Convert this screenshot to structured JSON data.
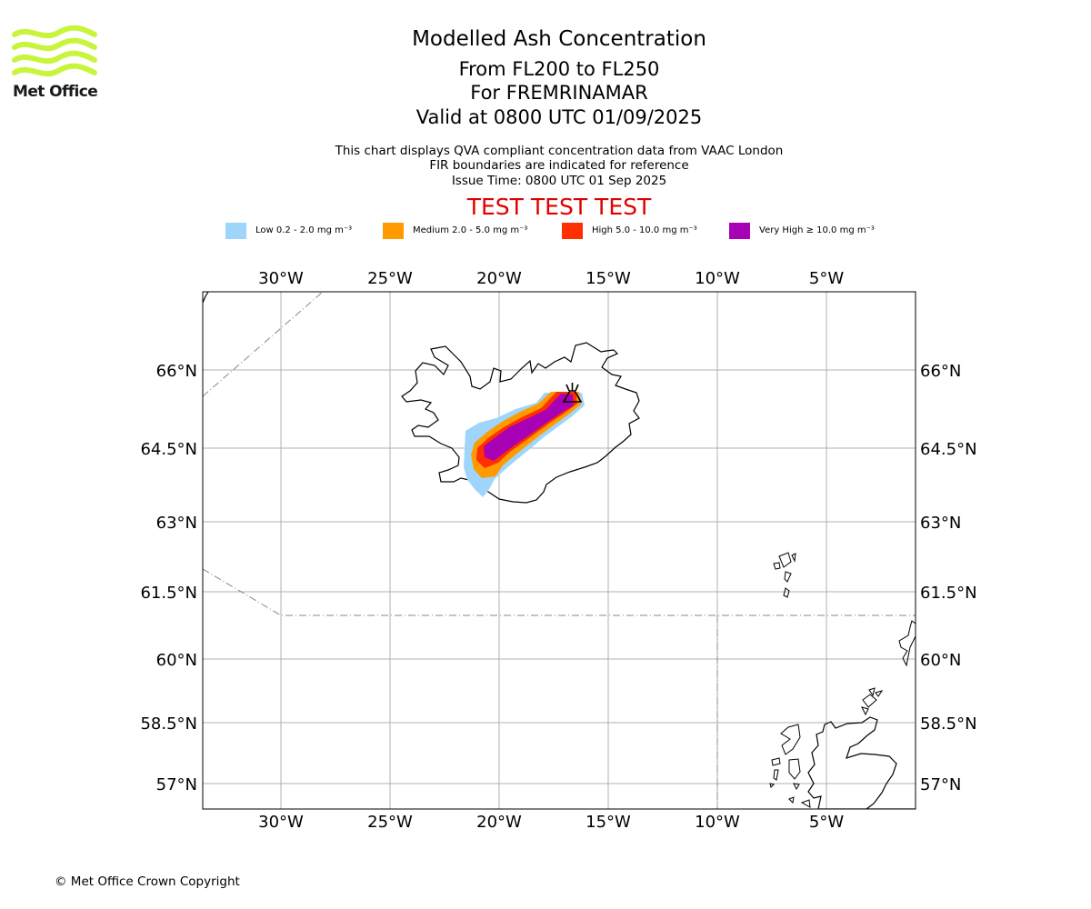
{
  "header": {
    "logo_text": "Met Office",
    "title": "Modelled Ash Concentration",
    "level_range": "From FL200 to FL250",
    "volcano_line": "For FREMRINAMAR",
    "valid_line": "Valid at 0800 UTC 01/09/2025",
    "description_1": "This chart displays QVA compliant concentration data from VAAC London",
    "description_2": "FIR boundaries are indicated for reference",
    "issue_time": "Issue Time: 0800 UTC 01 Sep 2025",
    "test_banner": "TEST TEST TEST"
  },
  "legend": [
    {
      "label": "Low 0.2 - 2.0 mg m⁻³",
      "color": "#9fd5fb"
    },
    {
      "label": "Medium 2.0 - 5.0 mg m⁻³",
      "color": "#ff9b00"
    },
    {
      "label": "High 5.0 - 10.0 mg m⁻³",
      "color": "#ff2f00"
    },
    {
      "label": "Very High ≥ 10.0 mg m⁻³",
      "color": "#a800b4"
    }
  ],
  "map": {
    "lon_ticks": [
      "30°W",
      "25°W",
      "20°W",
      "15°W",
      "10°W",
      "5°W"
    ],
    "lat_ticks": [
      "66°N",
      "64.5°N",
      "63°N",
      "61.5°N",
      "60°N",
      "58.5°N",
      "57°N"
    ],
    "volcano": "FREMRINAMAR",
    "volcano_icon": "volcano-icon",
    "colors": {
      "land_outline": "#000000",
      "gridline": "#b0b0b0",
      "fir_boundary": "#888888",
      "logo": "#c8f53c"
    }
  },
  "footer": {
    "copyright": "© Met Office Crown Copyright"
  }
}
